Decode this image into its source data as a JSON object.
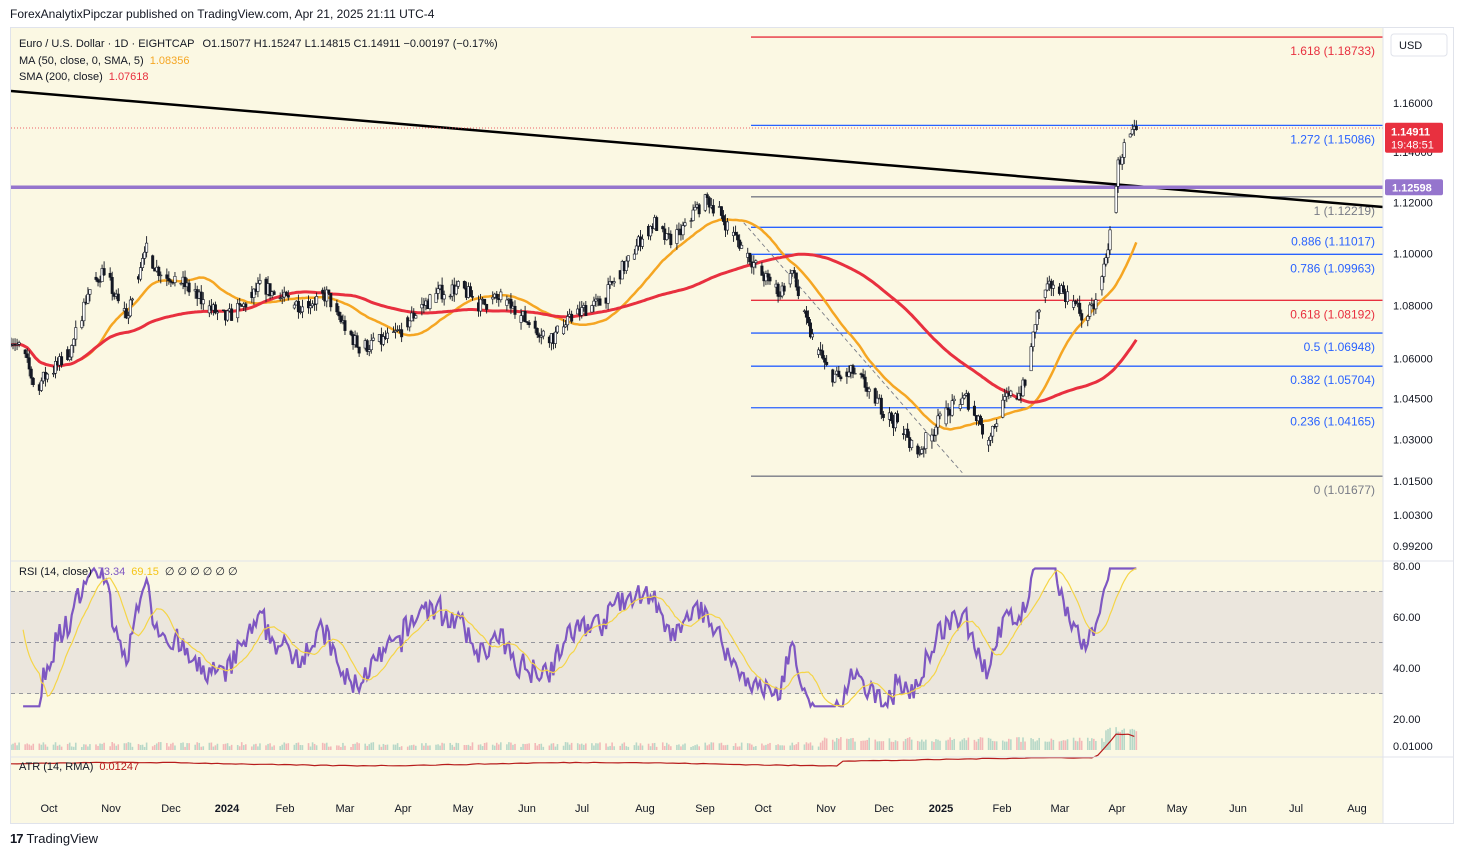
{
  "publisher_line": "ForexAnalytixPipczar published on TradingView.com, Apr 21, 2025 21:11 UTC-4",
  "footer": {
    "logo": "17",
    "brand": "TradingView"
  },
  "legend": {
    "symbol": "Euro / U.S. Dollar · 1D · EIGHTCAP",
    "ohlc": "O1.15077  H1.15247  L1.14815  C1.14911  −0.00197 (−0.17%)",
    "ma_label": "MA (50, close, 0, SMA, 5)",
    "ma_value": "1.08356",
    "sma_label": "SMA (200, close)",
    "sma_value": "1.07618",
    "rsi_label": "RSI (14, close)",
    "rsi_value": "73.34",
    "rsi_ma_value": "69.15",
    "rsi_extra": "∅ ∅ ∅ ∅ ∅ ∅",
    "atr_label": "ATR (14, RMA)",
    "atr_value": "0.01247"
  },
  "currency_button": "USD",
  "colors": {
    "background": "#fbf8e3",
    "candle": "#131722",
    "ma50": "#f5a623",
    "sma200": "#e8303f",
    "fib_blue": "#2962ff",
    "fib_red": "#e8303f",
    "fib_gray": "#787b86",
    "trend_black": "#000000",
    "resistance_purple": "#9575cd",
    "rsi_line": "#7e57c2",
    "rsi_ma": "#f5d547",
    "atr_line": "#b71c1c",
    "price_tag": "#e8303f"
  },
  "chart_data": {
    "type": "candlestick",
    "symbol": "EURUSD",
    "timeframe": "1D",
    "x_labels": [
      "Oct",
      "Nov",
      "Dec",
      "2024",
      "Feb",
      "Mar",
      "Apr",
      "May",
      "Jun",
      "Jul",
      "Aug",
      "Sep",
      "Oct",
      "Nov",
      "Dec",
      "2025",
      "Feb",
      "Mar",
      "Apr",
      "May",
      "Jun",
      "Jul",
      "Aug"
    ],
    "price_axis_labels": [
      "1.16000",
      "1.14000",
      "1.12000",
      "1.10000",
      "1.08000",
      "1.06000",
      "1.04500",
      "1.03000",
      "1.01500",
      "1.00300",
      "0.99200"
    ],
    "price_scale": "log",
    "current_price": "1.14911",
    "countdown": "19:48:51",
    "resistance_level": "1.12598",
    "price_path": [
      [
        0,
        1.068
      ],
      [
        6,
        1.062
      ],
      [
        12,
        1.049
      ],
      [
        18,
        1.054
      ],
      [
        24,
        1.058
      ],
      [
        30,
        1.064
      ],
      [
        38,
        1.085
      ],
      [
        46,
        1.094
      ],
      [
        52,
        1.082
      ],
      [
        58,
        1.076
      ],
      [
        66,
        1.103
      ],
      [
        72,
        1.094
      ],
      [
        84,
        1.089
      ],
      [
        96,
        1.08
      ],
      [
        106,
        1.075
      ],
      [
        114,
        1.079
      ],
      [
        124,
        1.088
      ],
      [
        132,
        1.083
      ],
      [
        144,
        1.08
      ],
      [
        156,
        1.084
      ],
      [
        164,
        1.073
      ],
      [
        172,
        1.064
      ],
      [
        182,
        1.066
      ],
      [
        192,
        1.07
      ],
      [
        202,
        1.079
      ],
      [
        212,
        1.085
      ],
      [
        222,
        1.087
      ],
      [
        232,
        1.08
      ],
      [
        242,
        1.083
      ],
      [
        250,
        1.077
      ],
      [
        260,
        1.071
      ],
      [
        268,
        1.068
      ],
      [
        276,
        1.074
      ],
      [
        284,
        1.079
      ],
      [
        292,
        1.081
      ],
      [
        300,
        1.092
      ],
      [
        306,
        1.098
      ],
      [
        312,
        1.107
      ],
      [
        318,
        1.112
      ],
      [
        324,
        1.105
      ],
      [
        330,
        1.107
      ],
      [
        338,
        1.117
      ],
      [
        344,
        1.121
      ],
      [
        350,
        1.116
      ],
      [
        356,
        1.108
      ],
      [
        362,
        1.102
      ],
      [
        368,
        1.095
      ],
      [
        374,
        1.089
      ],
      [
        380,
        1.085
      ],
      [
        386,
        1.093
      ],
      [
        392,
        1.075
      ],
      [
        398,
        1.064
      ],
      [
        404,
        1.055
      ],
      [
        410,
        1.052
      ],
      [
        416,
        1.055
      ],
      [
        422,
        1.05
      ],
      [
        428,
        1.044
      ],
      [
        434,
        1.038
      ],
      [
        440,
        1.035
      ],
      [
        444,
        1.028
      ],
      [
        448,
        1.025
      ],
      [
        454,
        1.032
      ],
      [
        460,
        1.038
      ],
      [
        466,
        1.042
      ],
      [
        472,
        1.045
      ],
      [
        478,
        1.038
      ],
      [
        482,
        1.03
      ],
      [
        486,
        1.036
      ],
      [
        492,
        1.045
      ],
      [
        498,
        1.047
      ],
      [
        502,
        1.051
      ],
      [
        506,
        1.074
      ],
      [
        510,
        1.083
      ],
      [
        516,
        1.09
      ],
      [
        520,
        1.085
      ],
      [
        526,
        1.08
      ],
      [
        530,
        1.075
      ],
      [
        534,
        1.078
      ],
      [
        538,
        1.085
      ],
      [
        541,
        1.1
      ],
      [
        544,
        1.11
      ],
      [
        547,
        1.135
      ],
      [
        550,
        1.142
      ],
      [
        553,
        1.145
      ],
      [
        556,
        1.1491
      ]
    ],
    "ma50_label_value": "1.08356",
    "sma200_label_value": "1.07618",
    "fibonacci": {
      "levels": [
        {
          "ratio": "1.618",
          "price": "1.18733",
          "color": "red"
        },
        {
          "ratio": "1.272",
          "price": "1.15086",
          "color": "blue"
        },
        {
          "ratio": "1",
          "price": "1.12219",
          "color": "gray"
        },
        {
          "ratio": "0.886",
          "price": "1.11017",
          "color": "blue"
        },
        {
          "ratio": "0.786",
          "price": "1.09963",
          "color": "blue"
        },
        {
          "ratio": "0.618",
          "price": "1.08192",
          "color": "red"
        },
        {
          "ratio": "0.5",
          "price": "1.06948",
          "color": "blue"
        },
        {
          "ratio": "0.382",
          "price": "1.05704",
          "color": "blue"
        },
        {
          "ratio": "0.236",
          "price": "1.04165",
          "color": "blue"
        },
        {
          "ratio": "0",
          "price": "1.01677",
          "color": "gray"
        }
      ]
    },
    "rsi": {
      "axis_labels": [
        "80.00",
        "60.00",
        "40.00",
        "20.00"
      ],
      "upper": 70,
      "middle": 50,
      "lower": 30,
      "last": 73.34,
      "last_ma": 69.15
    },
    "atr": {
      "axis_labels": [
        "0.01000"
      ],
      "last": 0.01247
    }
  }
}
